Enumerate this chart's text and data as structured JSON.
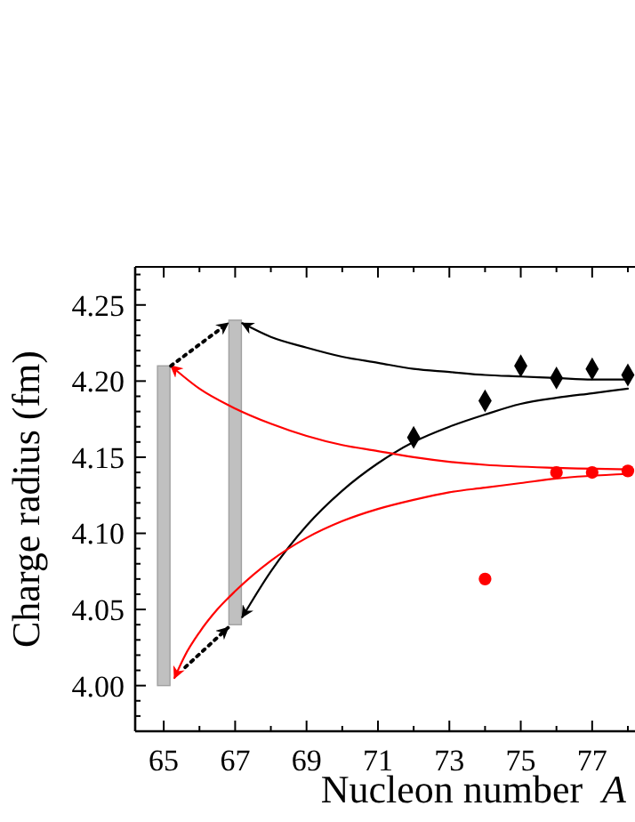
{
  "chart_data": {
    "type": "scatter",
    "xlabel": "Nucleon number  A",
    "ylabel": "Charge radius (fm)",
    "xlim": [
      64.2,
      78.2
    ],
    "ylim": [
      3.97,
      4.275
    ],
    "xticks": [
      65,
      {
        "value": 66,
        "label": null
      },
      67,
      {
        "value": 68,
        "label": null
      },
      69,
      {
        "value": 70,
        "label": null
      },
      71,
      {
        "value": 72,
        "label": null
      },
      73,
      {
        "value": 74,
        "label": null
      },
      75,
      {
        "value": 76,
        "label": null
      },
      77,
      {
        "value": 78,
        "label": null
      }
    ],
    "yticks": [
      {
        "value": 3.98,
        "label": null
      },
      {
        "value": 3.99,
        "label": null
      },
      {
        "value": 4.0,
        "label": "4.00"
      },
      {
        "value": 4.01,
        "label": null
      },
      {
        "value": 4.02,
        "label": null
      },
      {
        "value": 4.03,
        "label": null
      },
      {
        "value": 4.04,
        "label": null
      },
      {
        "value": 4.05,
        "label": "4.05"
      },
      {
        "value": 4.06,
        "label": null
      },
      {
        "value": 4.07,
        "label": null
      },
      {
        "value": 4.08,
        "label": null
      },
      {
        "value": 4.09,
        "label": null
      },
      {
        "value": 4.1,
        "label": "4.10"
      },
      {
        "value": 4.11,
        "label": null
      },
      {
        "value": 4.12,
        "label": null
      },
      {
        "value": 4.13,
        "label": null
      },
      {
        "value": 4.14,
        "label": null
      },
      {
        "value": 4.15,
        "label": "4.15"
      },
      {
        "value": 4.16,
        "label": null
      },
      {
        "value": 4.17,
        "label": null
      },
      {
        "value": 4.18,
        "label": null
      },
      {
        "value": 4.19,
        "label": null
      },
      {
        "value": 4.2,
        "label": "4.20"
      },
      {
        "value": 4.21,
        "label": null
      },
      {
        "value": 4.22,
        "label": null
      },
      {
        "value": 4.23,
        "label": null
      },
      {
        "value": 4.24,
        "label": null
      },
      {
        "value": 4.25,
        "label": "4.25"
      },
      {
        "value": 4.26,
        "label": null
      },
      {
        "value": 4.27,
        "label": null
      }
    ],
    "grid": false,
    "series": [
      {
        "type": "bar",
        "color": "#c0c0c0",
        "x": [
          65,
          67
        ],
        "base": [
          4.0,
          4.04
        ],
        "values": [
          0.21,
          0.2
        ]
      },
      {
        "type": "line",
        "color": "#000000",
        "marker": "none",
        "x": [
          78,
          77,
          76,
          75,
          74,
          73,
          72,
          71,
          70,
          69,
          68,
          67.2
        ],
        "values": [
          4.201,
          4.201,
          4.202,
          4.203,
          4.204,
          4.206,
          4.208,
          4.212,
          4.216,
          4.222,
          4.229,
          4.238
        ]
      },
      {
        "type": "line",
        "color": "#000000",
        "marker": "none",
        "x": [
          78,
          77,
          76,
          75,
          74,
          73,
          72,
          71,
          70,
          69,
          68,
          67.2
        ],
        "values": [
          4.195,
          4.192,
          4.189,
          4.185,
          4.178,
          4.17,
          4.16,
          4.146,
          4.128,
          4.105,
          4.075,
          4.045
        ]
      },
      {
        "type": "line",
        "color": "#ff0000",
        "marker": "none",
        "x": [
          78,
          76,
          74,
          73,
          72,
          71,
          70,
          69,
          68,
          67,
          66,
          65.2
        ],
        "values": [
          4.142,
          4.143,
          4.145,
          4.147,
          4.15,
          4.154,
          4.158,
          4.164,
          4.172,
          4.182,
          4.195,
          4.21
        ]
      },
      {
        "type": "line",
        "color": "#ff0000",
        "marker": "none",
        "x": [
          78,
          76,
          75,
          74,
          73,
          72,
          71,
          70,
          69,
          68,
          67,
          66.5,
          66,
          65.6,
          65.3
        ],
        "values": [
          4.139,
          4.136,
          4.133,
          4.13,
          4.127,
          4.122,
          4.116,
          4.108,
          4.097,
          4.082,
          4.062,
          4.05,
          4.035,
          4.02,
          4.005
        ]
      },
      {
        "type": "line",
        "color": "#000000",
        "marker": "none",
        "line_style": "dotted",
        "x": [
          65.2,
          66.8
        ],
        "values": [
          4.21,
          4.238
        ]
      },
      {
        "type": "line",
        "color": "#000000",
        "marker": "none",
        "line_style": "dotted",
        "x": [
          65.6,
          66.8
        ],
        "values": [
          4.012,
          4.038
        ]
      },
      {
        "color": "#000000",
        "marker": "diamond",
        "x": [
          72,
          74,
          75,
          76,
          77,
          78
        ],
        "values": [
          4.163,
          4.187,
          4.21,
          4.202,
          4.208,
          4.204
        ]
      },
      {
        "color": "#ff0000",
        "marker": "circle",
        "x": [
          74,
          76,
          77,
          78
        ],
        "values": [
          4.07,
          4.14,
          4.14,
          4.141
        ]
      }
    ]
  }
}
